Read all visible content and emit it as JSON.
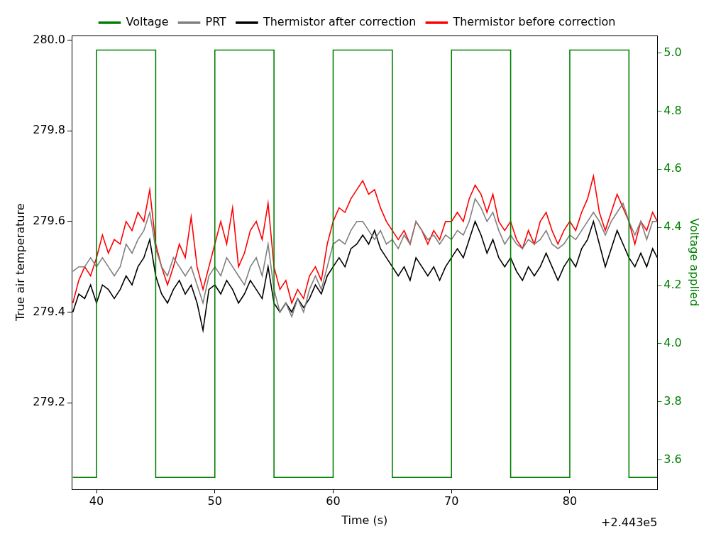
{
  "chart_data": {
    "type": "line",
    "x_label": "Time (s)",
    "y_label": "True air temperature",
    "y2_label": "Voltage applied",
    "annotations": [
      "+2.443e5"
    ],
    "x": [
      38,
      38.5,
      39,
      39.5,
      40,
      40.5,
      41,
      41.5,
      42,
      42.5,
      43,
      43.5,
      44,
      44.5,
      45,
      45.5,
      46,
      46.5,
      47,
      47.5,
      48,
      48.5,
      49,
      49.5,
      50,
      50.5,
      51,
      51.5,
      52,
      52.5,
      53,
      53.5,
      54,
      54.5,
      55,
      55.5,
      56,
      56.5,
      57,
      57.5,
      58,
      58.5,
      59,
      59.5,
      60,
      60.5,
      61,
      61.5,
      62,
      62.5,
      63,
      63.5,
      64,
      64.5,
      65,
      65.5,
      66,
      66.5,
      67,
      67.5,
      68,
      68.5,
      69,
      69.5,
      70,
      70.5,
      71,
      71.5,
      72,
      72.5,
      73,
      73.5,
      74,
      74.5,
      75,
      75.5,
      76,
      76.5,
      77,
      77.5,
      78,
      78.5,
      79,
      79.5,
      80,
      80.5,
      81,
      81.5,
      82,
      82.5,
      83,
      83.5,
      84,
      84.5,
      85,
      85.5,
      86,
      86.5,
      87,
      87.4
    ],
    "series": [
      {
        "name": "Thermistor before correction",
        "color": "#ff0000",
        "axis": "y",
        "values": [
          279.42,
          279.47,
          279.5,
          279.48,
          279.52,
          279.57,
          279.53,
          279.56,
          279.55,
          279.6,
          279.58,
          279.62,
          279.6,
          279.67,
          279.55,
          279.5,
          279.46,
          279.5,
          279.55,
          279.52,
          279.61,
          279.5,
          279.45,
          279.5,
          279.55,
          279.6,
          279.55,
          279.63,
          279.5,
          279.53,
          279.58,
          279.6,
          279.56,
          279.64,
          279.5,
          279.45,
          279.47,
          279.42,
          279.45,
          279.43,
          279.48,
          279.5,
          279.47,
          279.55,
          279.6,
          279.63,
          279.62,
          279.65,
          279.67,
          279.69,
          279.66,
          279.67,
          279.63,
          279.6,
          279.58,
          279.56,
          279.58,
          279.55,
          279.6,
          279.58,
          279.55,
          279.58,
          279.56,
          279.6,
          279.6,
          279.62,
          279.6,
          279.65,
          279.68,
          279.66,
          279.62,
          279.66,
          279.6,
          279.58,
          279.6,
          279.56,
          279.54,
          279.58,
          279.55,
          279.6,
          279.62,
          279.58,
          279.55,
          279.58,
          279.6,
          279.58,
          279.62,
          279.65,
          279.7,
          279.62,
          279.58,
          279.62,
          279.66,
          279.63,
          279.6,
          279.55,
          279.6,
          279.58,
          279.62,
          279.6
        ]
      },
      {
        "name": "Thermistor after correction",
        "color": "#000000",
        "axis": "y",
        "values": [
          279.4,
          279.44,
          279.43,
          279.46,
          279.42,
          279.46,
          279.45,
          279.43,
          279.45,
          279.48,
          279.46,
          279.5,
          279.52,
          279.56,
          279.48,
          279.44,
          279.42,
          279.45,
          279.47,
          279.44,
          279.46,
          279.42,
          279.36,
          279.45,
          279.46,
          279.44,
          279.47,
          279.45,
          279.42,
          279.44,
          279.47,
          279.45,
          279.43,
          279.5,
          279.42,
          279.4,
          279.42,
          279.4,
          279.43,
          279.41,
          279.43,
          279.46,
          279.44,
          279.48,
          279.5,
          279.52,
          279.5,
          279.54,
          279.55,
          279.57,
          279.55,
          279.58,
          279.54,
          279.52,
          279.5,
          279.48,
          279.5,
          279.47,
          279.52,
          279.5,
          279.48,
          279.5,
          279.47,
          279.5,
          279.52,
          279.54,
          279.52,
          279.56,
          279.6,
          279.57,
          279.53,
          279.56,
          279.52,
          279.5,
          279.52,
          279.49,
          279.47,
          279.5,
          279.48,
          279.5,
          279.53,
          279.5,
          279.47,
          279.5,
          279.52,
          279.5,
          279.54,
          279.56,
          279.6,
          279.55,
          279.5,
          279.54,
          279.58,
          279.55,
          279.52,
          279.5,
          279.53,
          279.5,
          279.54,
          279.52
        ]
      },
      {
        "name": "PRT",
        "color": "#808080",
        "axis": "y",
        "values": [
          279.49,
          279.5,
          279.5,
          279.52,
          279.5,
          279.52,
          279.5,
          279.48,
          279.5,
          279.55,
          279.53,
          279.56,
          279.58,
          279.62,
          279.54,
          279.5,
          279.48,
          279.52,
          279.5,
          279.48,
          279.5,
          279.46,
          279.42,
          279.48,
          279.5,
          279.48,
          279.52,
          279.5,
          279.48,
          279.46,
          279.5,
          279.52,
          279.48,
          279.55,
          279.45,
          279.4,
          279.42,
          279.39,
          279.43,
          279.4,
          279.45,
          279.48,
          279.45,
          279.5,
          279.55,
          279.56,
          279.55,
          279.58,
          279.6,
          279.6,
          279.58,
          279.56,
          279.58,
          279.55,
          279.56,
          279.54,
          279.57,
          279.55,
          279.6,
          279.58,
          279.56,
          279.57,
          279.55,
          279.57,
          279.56,
          279.58,
          279.57,
          279.6,
          279.65,
          279.63,
          279.6,
          279.62,
          279.58,
          279.55,
          279.57,
          279.55,
          279.54,
          279.56,
          279.55,
          279.56,
          279.58,
          279.55,
          279.54,
          279.55,
          279.57,
          279.56,
          279.58,
          279.6,
          279.62,
          279.6,
          279.57,
          279.6,
          279.62,
          279.64,
          279.6,
          279.57,
          279.6,
          279.56,
          279.6,
          279.6
        ]
      },
      {
        "name": "Voltage",
        "color": "#008000",
        "axis": "y2",
        "line_style": "steps",
        "values": [
          3.54,
          3.54,
          3.54,
          3.54,
          5.01,
          5.01,
          5.01,
          5.01,
          5.01,
          5.01,
          5.01,
          5.01,
          5.01,
          5.01,
          3.54,
          3.54,
          3.54,
          3.54,
          3.54,
          3.54,
          3.54,
          3.54,
          3.54,
          3.54,
          5.01,
          5.01,
          5.01,
          5.01,
          5.01,
          5.01,
          5.01,
          5.01,
          5.01,
          5.01,
          3.54,
          3.54,
          3.54,
          3.54,
          3.54,
          3.54,
          3.54,
          3.54,
          3.54,
          3.54,
          5.01,
          5.01,
          5.01,
          5.01,
          5.01,
          5.01,
          5.01,
          5.01,
          5.01,
          5.01,
          3.54,
          3.54,
          3.54,
          3.54,
          3.54,
          3.54,
          3.54,
          3.54,
          3.54,
          3.54,
          5.01,
          5.01,
          5.01,
          5.01,
          5.01,
          5.01,
          5.01,
          5.01,
          5.01,
          5.01,
          3.54,
          3.54,
          3.54,
          3.54,
          3.54,
          3.54,
          3.54,
          3.54,
          3.54,
          3.54,
          5.01,
          5.01,
          5.01,
          5.01,
          5.01,
          5.01,
          5.01,
          5.01,
          5.01,
          5.01,
          3.54,
          3.54,
          3.54,
          3.54,
          3.54,
          3.54
        ]
      }
    ],
    "xlim": [
      37.9,
      87.4
    ],
    "xticks": [
      40,
      50,
      60,
      70,
      80
    ],
    "ylim": [
      279.01,
      280.01
    ],
    "yticks": [
      279.2,
      279.4,
      279.6,
      279.8,
      {
        "value": 280,
        "label": "280.0"
      }
    ],
    "y2lim": [
      3.5,
      5.06
    ],
    "y2ticks": [
      3.6,
      3.8,
      {
        "value": 4,
        "label": "4.0"
      },
      4.2,
      4.4,
      4.6,
      4.8,
      {
        "value": 5,
        "label": "5.0"
      }
    ],
    "grid": false,
    "legend": "top"
  }
}
